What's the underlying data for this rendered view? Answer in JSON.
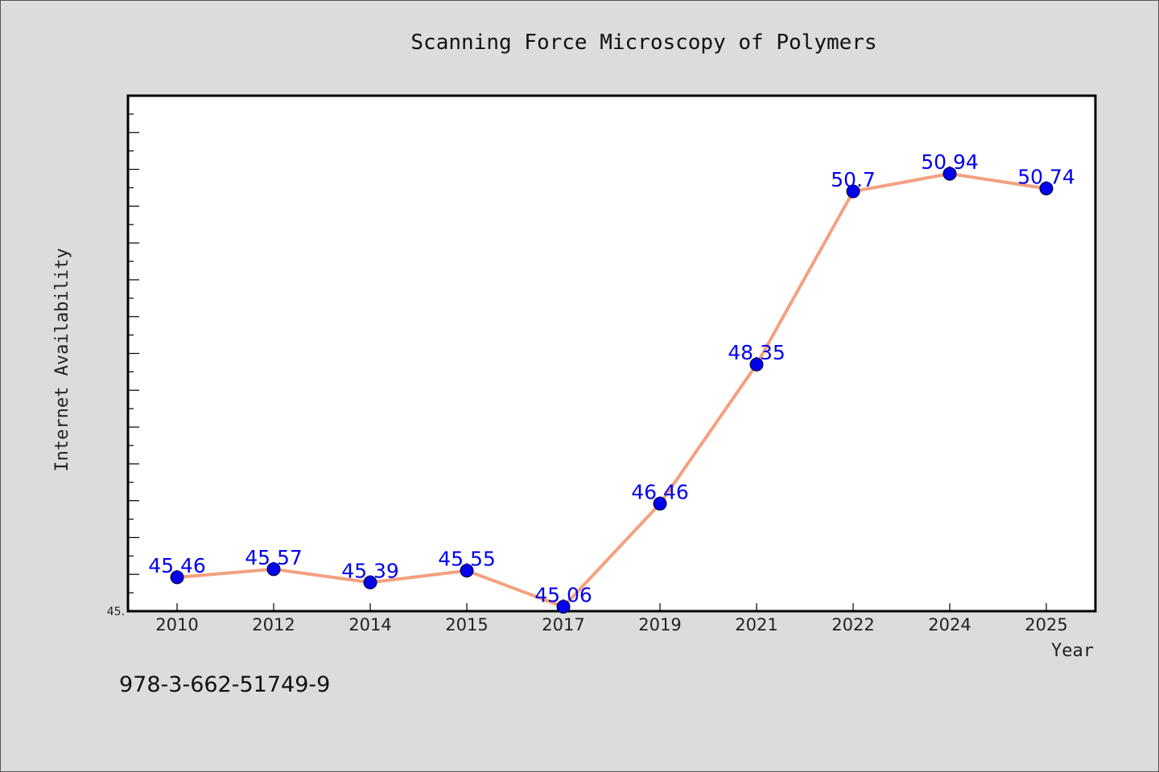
{
  "chart_data": {
    "type": "line",
    "title": "Scanning Force Microscopy of Polymers",
    "xlabel": "Year",
    "ylabel": "Internet Availability",
    "categories": [
      "2010",
      "2012",
      "2014",
      "2015",
      "2017",
      "2019",
      "2021",
      "2022",
      "2024",
      "2025"
    ],
    "series": [
      {
        "values": [
          45.46,
          45.57,
          45.39,
          45.55,
          45.06,
          46.46,
          48.35,
          50.7,
          50.94,
          50.74
        ],
        "labels": [
          "45.46",
          "45.57",
          "45.39",
          "45.55",
          "45.06",
          "46.46",
          "48.35",
          "50.7",
          "50.94",
          "50.74"
        ]
      }
    ],
    "ylim": [
      45.0,
      52.0
    ],
    "y_tick_labels": [
      "45."
    ],
    "grid": false,
    "legend": "none",
    "colors": {
      "line": "#f4a080",
      "marker": "#0000ee",
      "label": "#0000ee",
      "plot_bg": "#ffffff",
      "page_bg": "#dcdcdc"
    }
  },
  "footer": {
    "isbn": "978-3-662-51749-9"
  }
}
